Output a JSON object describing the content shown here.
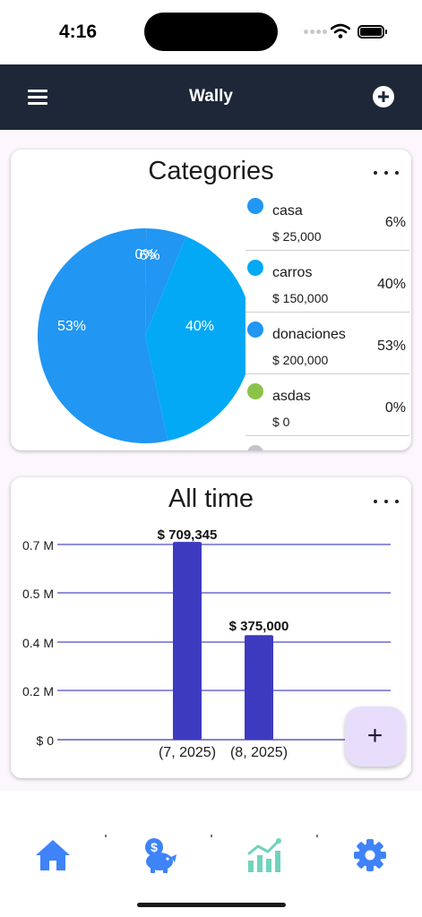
{
  "status_bar": {
    "time": "4:16"
  },
  "app_bar": {
    "title": "Wally",
    "menu_icon": "menu-icon",
    "add_icon": "add-circle-icon"
  },
  "categories_card": {
    "title": "Categories",
    "pie_labels": [
      "0%",
      "6%",
      "53%",
      "40%"
    ],
    "items": [
      {
        "name": "casa",
        "amount": "$ 25,000",
        "percent": "6%",
        "color": "#2196f3"
      },
      {
        "name": "carros",
        "amount": "$ 150,000",
        "percent": "40%",
        "color": "#03a9f4"
      },
      {
        "name": "donaciones",
        "amount": "$ 200,000",
        "percent": "53%",
        "color": "#2196f3"
      },
      {
        "name": "asdas",
        "amount": "$ 0",
        "percent": "0%",
        "color": "#8bc34a"
      }
    ]
  },
  "alltime_card": {
    "title": "All time",
    "y_ticks": [
      "0.7 M",
      "0.5 M",
      "0.4 M",
      "0.2 M",
      "$ 0"
    ],
    "bar_labels": [
      "$ 709,345",
      "$ 375,000"
    ],
    "x_labels": [
      "(7, 2025)",
      "(8, 2025)"
    ]
  },
  "chart_data": [
    {
      "type": "pie",
      "title": "Categories",
      "labels": [
        "casa",
        "carros",
        "donaciones",
        "asdas"
      ],
      "values": [
        6,
        40,
        53,
        0
      ],
      "colors": [
        "#2196f3",
        "#03a9f4",
        "#2196f3",
        "#8bc34a"
      ]
    },
    {
      "type": "bar",
      "title": "All time",
      "categories": [
        "(7, 2025)",
        "(8, 2025)"
      ],
      "values": [
        709345,
        375000
      ],
      "ytick_values": [
        700000,
        500000,
        400000,
        200000,
        0
      ],
      "color": "#3d3abf"
    }
  ],
  "fab": {
    "label": "+"
  },
  "bottom_nav": {
    "items": [
      {
        "icon": "home-icon",
        "color": "#3f83f8"
      },
      {
        "icon": "piggy-bank-icon",
        "color": "#3f83f8"
      },
      {
        "icon": "chart-icon",
        "color": "#6fd3bd"
      },
      {
        "icon": "settings-icon",
        "color": "#3f83f8"
      }
    ]
  }
}
